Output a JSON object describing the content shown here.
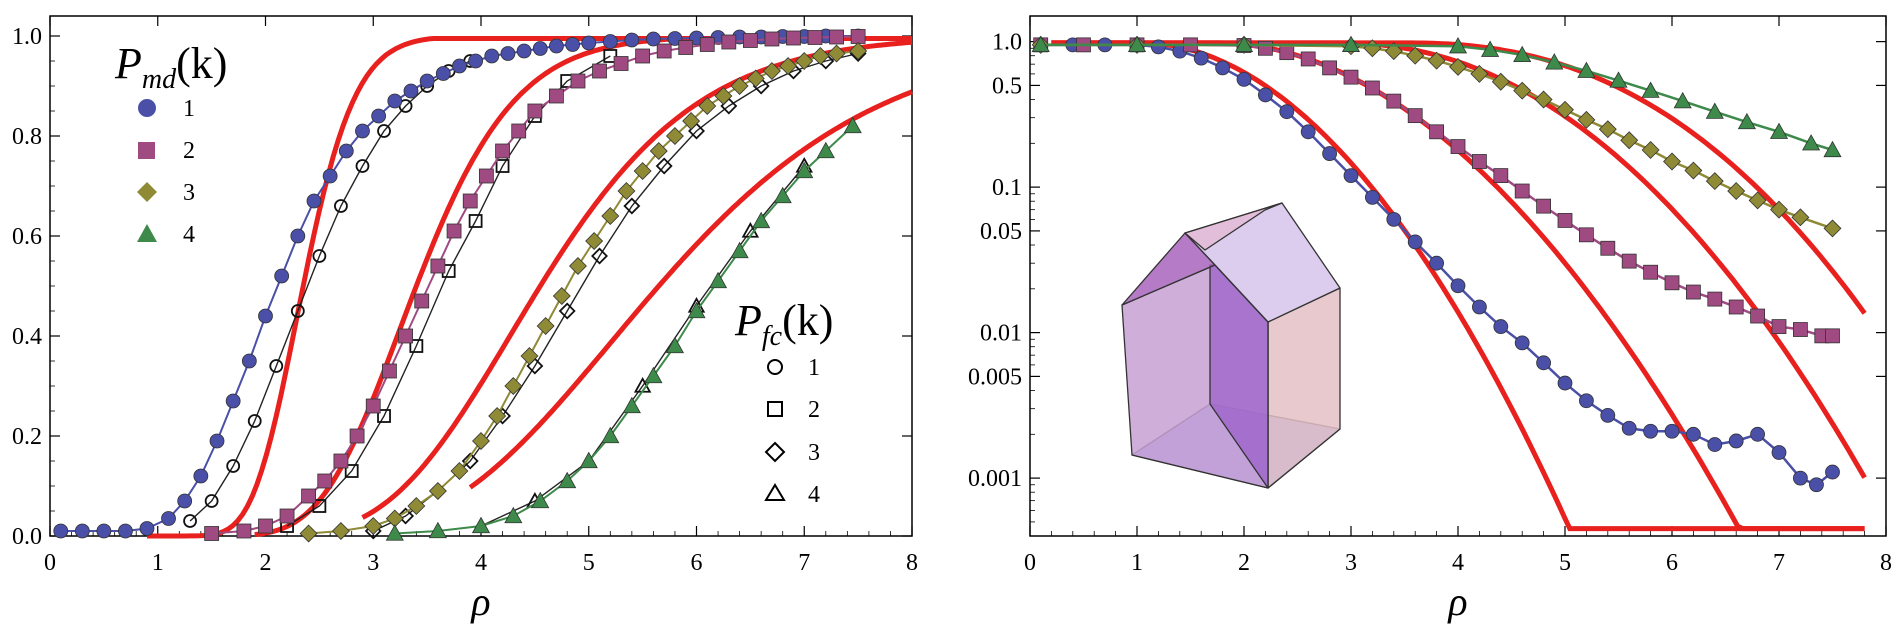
{
  "chart_data": [
    {
      "type": "scatter",
      "panel": "left",
      "scale": "linear",
      "xlabel": "ρ",
      "ylabel": "",
      "xlim": [
        0,
        8
      ],
      "ylim": [
        0,
        1.04
      ],
      "xticks": [
        0,
        1,
        2,
        3,
        4,
        5,
        6,
        7,
        8
      ],
      "xtick_labels": [
        "0",
        "1",
        "2",
        "3",
        "4",
        "5",
        "6",
        "7",
        "8"
      ],
      "yticks": [
        0,
        0.2,
        0.4,
        0.6,
        0.8,
        1.0
      ],
      "ytick_labels": [
        "0.0",
        "0.2",
        "0.4",
        "0.6",
        "0.8",
        "1.0"
      ],
      "legend_md": {
        "title_main": "P",
        "title_sub": "md",
        "title_arg": "(k)",
        "entries": [
          "1",
          "2",
          "3",
          "4"
        ],
        "placement": "top-left"
      },
      "legend_fc": {
        "title_main": "P",
        "title_sub": "fc",
        "title_arg": "(k)",
        "entries": [
          "1",
          "2",
          "3",
          "4"
        ],
        "placement": "lower-right"
      },
      "series": [
        {
          "name": "P_md(1)",
          "color": "#4a4fa8",
          "marker": "circle",
          "filled": true,
          "x": [
            0.1,
            0.3,
            0.5,
            0.7,
            0.9,
            1.1,
            1.25,
            1.4,
            1.55,
            1.7,
            1.85,
            2.0,
            2.15,
            2.3,
            2.45,
            2.6,
            2.75,
            2.9,
            3.05,
            3.2,
            3.35,
            3.5,
            3.65,
            3.8,
            3.95,
            4.1,
            4.25,
            4.4,
            4.55,
            4.7,
            4.85,
            5.0,
            5.2,
            5.4,
            5.6,
            5.8,
            6.0,
            6.2,
            6.4,
            6.6,
            6.8,
            7.0,
            7.2,
            7.5
          ],
          "y": [
            0.01,
            0.01,
            0.01,
            0.01,
            0.015,
            0.035,
            0.07,
            0.12,
            0.19,
            0.27,
            0.35,
            0.44,
            0.52,
            0.6,
            0.67,
            0.72,
            0.77,
            0.81,
            0.84,
            0.87,
            0.89,
            0.91,
            0.925,
            0.94,
            0.95,
            0.96,
            0.965,
            0.97,
            0.975,
            0.98,
            0.983,
            0.986,
            0.989,
            0.992,
            0.994,
            0.995,
            0.996,
            0.997,
            0.998,
            0.998,
            0.999,
            0.999,
            1.0,
            1.0
          ]
        },
        {
          "name": "P_md(2)",
          "color": "#a04a82",
          "marker": "square",
          "filled": true,
          "x": [
            1.5,
            1.8,
            2.0,
            2.2,
            2.4,
            2.55,
            2.7,
            2.85,
            3.0,
            3.15,
            3.3,
            3.45,
            3.6,
            3.75,
            3.9,
            4.05,
            4.2,
            4.35,
            4.5,
            4.7,
            4.9,
            5.1,
            5.3,
            5.5,
            5.7,
            5.9,
            6.1,
            6.3,
            6.5,
            6.7,
            6.9,
            7.1,
            7.3,
            7.5
          ],
          "y": [
            0.005,
            0.01,
            0.02,
            0.04,
            0.08,
            0.11,
            0.15,
            0.2,
            0.26,
            0.33,
            0.4,
            0.47,
            0.54,
            0.61,
            0.67,
            0.72,
            0.77,
            0.81,
            0.85,
            0.88,
            0.91,
            0.93,
            0.945,
            0.96,
            0.97,
            0.977,
            0.983,
            0.988,
            0.991,
            0.994,
            0.996,
            0.997,
            0.998,
            0.999
          ]
        },
        {
          "name": "P_md(3)",
          "color": "#8f8a35",
          "marker": "diamond",
          "filled": true,
          "x": [
            2.4,
            2.7,
            3.0,
            3.2,
            3.4,
            3.6,
            3.8,
            4.0,
            4.15,
            4.3,
            4.45,
            4.6,
            4.75,
            4.9,
            5.05,
            5.2,
            5.35,
            5.5,
            5.65,
            5.8,
            5.95,
            6.1,
            6.25,
            6.4,
            6.55,
            6.7,
            6.85,
            7.0,
            7.15,
            7.3,
            7.5
          ],
          "y": [
            0.005,
            0.01,
            0.02,
            0.035,
            0.06,
            0.09,
            0.13,
            0.19,
            0.24,
            0.3,
            0.36,
            0.42,
            0.48,
            0.54,
            0.59,
            0.64,
            0.69,
            0.73,
            0.77,
            0.8,
            0.83,
            0.86,
            0.88,
            0.9,
            0.915,
            0.93,
            0.94,
            0.95,
            0.96,
            0.965,
            0.97
          ]
        },
        {
          "name": "P_md(4)",
          "color": "#3d8a4a",
          "marker": "triangle",
          "filled": true,
          "x": [
            3.2,
            3.6,
            4.0,
            4.3,
            4.55,
            4.8,
            5.0,
            5.2,
            5.4,
            5.6,
            5.8,
            6.0,
            6.2,
            6.4,
            6.6,
            6.8,
            7.0,
            7.2,
            7.45
          ],
          "y": [
            0.005,
            0.01,
            0.02,
            0.04,
            0.07,
            0.11,
            0.15,
            0.2,
            0.26,
            0.32,
            0.38,
            0.45,
            0.51,
            0.57,
            0.63,
            0.68,
            0.73,
            0.77,
            0.82
          ]
        },
        {
          "name": "P_fc(1)",
          "color": "#111111",
          "marker": "circle",
          "filled": false,
          "x": [
            1.3,
            1.5,
            1.7,
            1.9,
            2.1,
            2.3,
            2.5,
            2.7,
            2.9,
            3.1,
            3.3,
            3.5,
            3.7,
            3.9
          ],
          "y": [
            0.03,
            0.07,
            0.14,
            0.23,
            0.34,
            0.45,
            0.56,
            0.66,
            0.74,
            0.81,
            0.86,
            0.9,
            0.93,
            0.95
          ]
        },
        {
          "name": "P_fc(2)",
          "color": "#111111",
          "marker": "square",
          "filled": false,
          "x": [
            2.2,
            2.5,
            2.8,
            3.1,
            3.4,
            3.7,
            3.95,
            4.2,
            4.5,
            4.8,
            5.2
          ],
          "y": [
            0.02,
            0.06,
            0.13,
            0.24,
            0.38,
            0.53,
            0.63,
            0.74,
            0.84,
            0.91,
            0.96
          ]
        },
        {
          "name": "P_fc(3)",
          "color": "#111111",
          "marker": "diamond",
          "filled": false,
          "x": [
            3.0,
            3.3,
            3.6,
            3.9,
            4.2,
            4.5,
            4.8,
            5.1,
            5.4,
            5.7,
            6.0,
            6.3,
            6.6,
            6.9,
            7.2,
            7.5
          ],
          "y": [
            0.01,
            0.04,
            0.09,
            0.15,
            0.24,
            0.34,
            0.45,
            0.56,
            0.66,
            0.74,
            0.81,
            0.86,
            0.9,
            0.93,
            0.95,
            0.965
          ]
        },
        {
          "name": "P_fc(4)",
          "color": "#111111",
          "marker": "triangle",
          "filled": false,
          "x": [
            4.0,
            4.5,
            5.0,
            5.5,
            6.0,
            6.5,
            7.0
          ],
          "y": [
            0.02,
            0.07,
            0.15,
            0.3,
            0.46,
            0.61,
            0.74
          ]
        }
      ],
      "fit_curves": {
        "color": "#e8201e",
        "labels": [
          "1",
          "2",
          "3",
          "4"
        ],
        "note": "red analytic curves, one per k"
      }
    },
    {
      "type": "scatter",
      "panel": "right",
      "scale": "log-y",
      "xlabel": "ρ",
      "ylabel": "",
      "xlim": [
        0,
        8
      ],
      "ylim": [
        0.0004,
        1.5
      ],
      "xticks": [
        0,
        1,
        2,
        3,
        4,
        5,
        6,
        7,
        8
      ],
      "xtick_labels": [
        "0",
        "1",
        "2",
        "3",
        "4",
        "5",
        "6",
        "7",
        "8"
      ],
      "yticks": [
        1.0,
        0.5,
        0.1,
        0.05,
        0.01,
        0.005,
        0.001
      ],
      "ytick_labels": [
        "1.0",
        "0.5",
        "0.1",
        "0.05",
        "0.01",
        "0.005",
        "0.001"
      ],
      "series": [
        {
          "name": "k=1",
          "color": "#4a4fa8",
          "marker": "circle",
          "x": [
            0.1,
            0.4,
            0.7,
            1.0,
            1.2,
            1.4,
            1.6,
            1.8,
            2.0,
            2.2,
            2.4,
            2.6,
            2.8,
            3.0,
            3.2,
            3.4,
            3.6,
            3.8,
            4.0,
            4.2,
            4.4,
            4.6,
            4.8,
            5.0,
            5.2,
            5.4,
            5.6,
            5.8,
            6.0,
            6.2,
            6.4,
            6.6,
            6.8,
            7.0,
            7.2,
            7.35,
            7.5
          ],
          "y": [
            0.95,
            0.95,
            0.95,
            0.95,
            0.92,
            0.86,
            0.77,
            0.66,
            0.55,
            0.43,
            0.33,
            0.24,
            0.17,
            0.12,
            0.085,
            0.06,
            0.042,
            0.03,
            0.021,
            0.015,
            0.011,
            0.0085,
            0.0062,
            0.0045,
            0.0034,
            0.0027,
            0.0022,
            0.0021,
            0.0021,
            0.002,
            0.0017,
            0.0018,
            0.002,
            0.0015,
            0.001,
            0.0009,
            0.0011
          ]
        },
        {
          "name": "k=2",
          "color": "#a04a82",
          "marker": "square",
          "x": [
            0.1,
            0.5,
            1.0,
            1.5,
            2.0,
            2.2,
            2.4,
            2.6,
            2.8,
            3.0,
            3.2,
            3.4,
            3.6,
            3.8,
            4.0,
            4.2,
            4.4,
            4.6,
            4.8,
            5.0,
            5.2,
            5.4,
            5.6,
            5.8,
            6.0,
            6.2,
            6.4,
            6.6,
            6.8,
            7.0,
            7.2,
            7.4,
            7.5
          ],
          "y": [
            0.95,
            0.95,
            0.95,
            0.95,
            0.94,
            0.9,
            0.84,
            0.76,
            0.66,
            0.57,
            0.48,
            0.39,
            0.31,
            0.24,
            0.19,
            0.15,
            0.12,
            0.094,
            0.074,
            0.059,
            0.047,
            0.038,
            0.031,
            0.026,
            0.022,
            0.019,
            0.017,
            0.015,
            0.013,
            0.011,
            0.0105,
            0.0095,
            0.0095
          ]
        },
        {
          "name": "k=3",
          "color": "#8f8a35",
          "marker": "diamond",
          "x": [
            0.1,
            1.0,
            2.0,
            3.0,
            3.2,
            3.4,
            3.6,
            3.8,
            4.0,
            4.2,
            4.4,
            4.6,
            4.8,
            5.0,
            5.2,
            5.4,
            5.6,
            5.8,
            6.0,
            6.2,
            6.4,
            6.6,
            6.8,
            7.0,
            7.2,
            7.5
          ],
          "y": [
            0.95,
            0.95,
            0.95,
            0.93,
            0.9,
            0.86,
            0.8,
            0.74,
            0.67,
            0.6,
            0.53,
            0.46,
            0.4,
            0.34,
            0.29,
            0.25,
            0.21,
            0.18,
            0.15,
            0.13,
            0.11,
            0.094,
            0.081,
            0.07,
            0.062,
            0.052
          ]
        },
        {
          "name": "k=4",
          "color": "#3d8a4a",
          "marker": "triangle",
          "x": [
            0.1,
            1.0,
            2.0,
            3.0,
            4.0,
            4.3,
            4.6,
            4.9,
            5.2,
            5.5,
            5.8,
            6.1,
            6.4,
            6.7,
            7.0,
            7.3,
            7.5
          ],
          "y": [
            0.95,
            0.95,
            0.95,
            0.95,
            0.93,
            0.88,
            0.81,
            0.72,
            0.63,
            0.54,
            0.46,
            0.39,
            0.33,
            0.28,
            0.24,
            0.2,
            0.18
          ]
        }
      ],
      "fit_curves": {
        "color": "#e8201e"
      },
      "inset": {
        "description": "translucent polyhedron (house-shaped cell)"
      }
    }
  ]
}
